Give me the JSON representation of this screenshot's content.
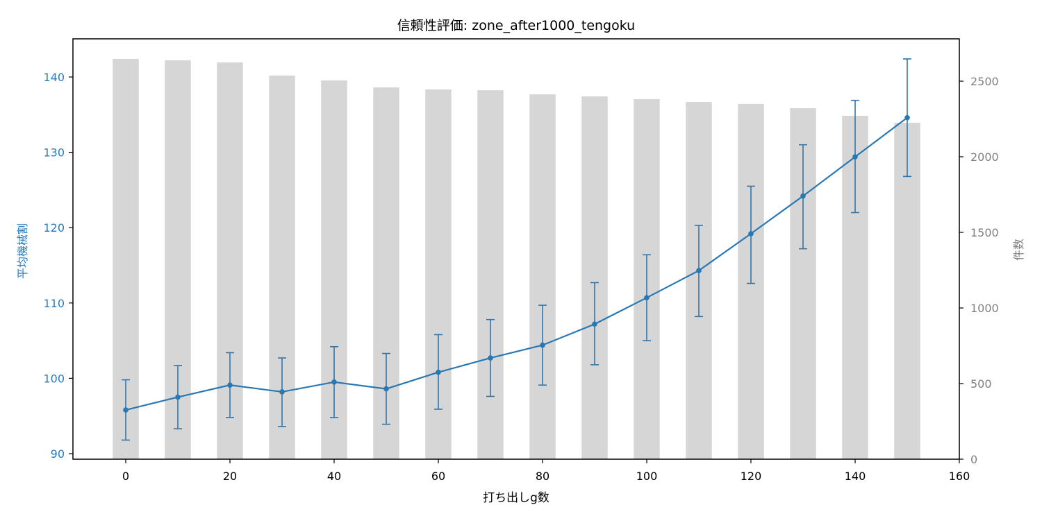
{
  "chart_data": {
    "type": "bar+line",
    "title": "信頼性評価: zone_after1000_tengoku",
    "xlabel": "打ち出しg数",
    "ylabel_left": "平均機械割",
    "ylabel_right": "件数",
    "xlim": [
      -10,
      160
    ],
    "ylim_left": [
      89.3,
      145
    ],
    "ylim_right": [
      0,
      2770
    ],
    "x_ticks": [
      0,
      20,
      40,
      60,
      80,
      100,
      120,
      140,
      160
    ],
    "y_left_ticks": [
      90,
      100,
      110,
      120,
      130,
      140
    ],
    "y_right_ticks": [
      0,
      500,
      1000,
      1500,
      2000,
      2500
    ],
    "grid": false,
    "x": [
      0,
      10,
      20,
      30,
      40,
      50,
      60,
      70,
      80,
      90,
      100,
      110,
      120,
      130,
      140,
      150
    ],
    "series": [
      {
        "name": "件数",
        "type": "bar",
        "axis": "right",
        "color": "#d6d6d6",
        "values": [
          2647,
          2638,
          2624,
          2537,
          2505,
          2459,
          2445,
          2440,
          2413,
          2399,
          2381,
          2362,
          2349,
          2321,
          2271,
          2225
        ]
      },
      {
        "name": "平均機械割",
        "type": "line",
        "axis": "left",
        "color": "#2878b4",
        "values": [
          95.8,
          97.5,
          99.1,
          98.2,
          99.5,
          98.6,
          100.8,
          102.7,
          104.4,
          107.2,
          110.7,
          114.3,
          119.2,
          124.2,
          129.4,
          134.6
        ],
        "err_upper": [
          99.8,
          101.7,
          103.4,
          102.7,
          104.2,
          103.3,
          105.8,
          107.8,
          109.7,
          112.7,
          116.4,
          120.3,
          125.5,
          131.0,
          136.9,
          142.4
        ],
        "err_lower": [
          91.8,
          93.3,
          94.8,
          93.6,
          94.8,
          93.9,
          95.9,
          97.6,
          99.1,
          101.8,
          105.0,
          108.2,
          112.6,
          117.2,
          122.0,
          126.8
        ]
      }
    ],
    "colors": {
      "left_axis": "#2a7ab8",
      "right_axis": "#808080",
      "axis_line": "#000000"
    }
  }
}
